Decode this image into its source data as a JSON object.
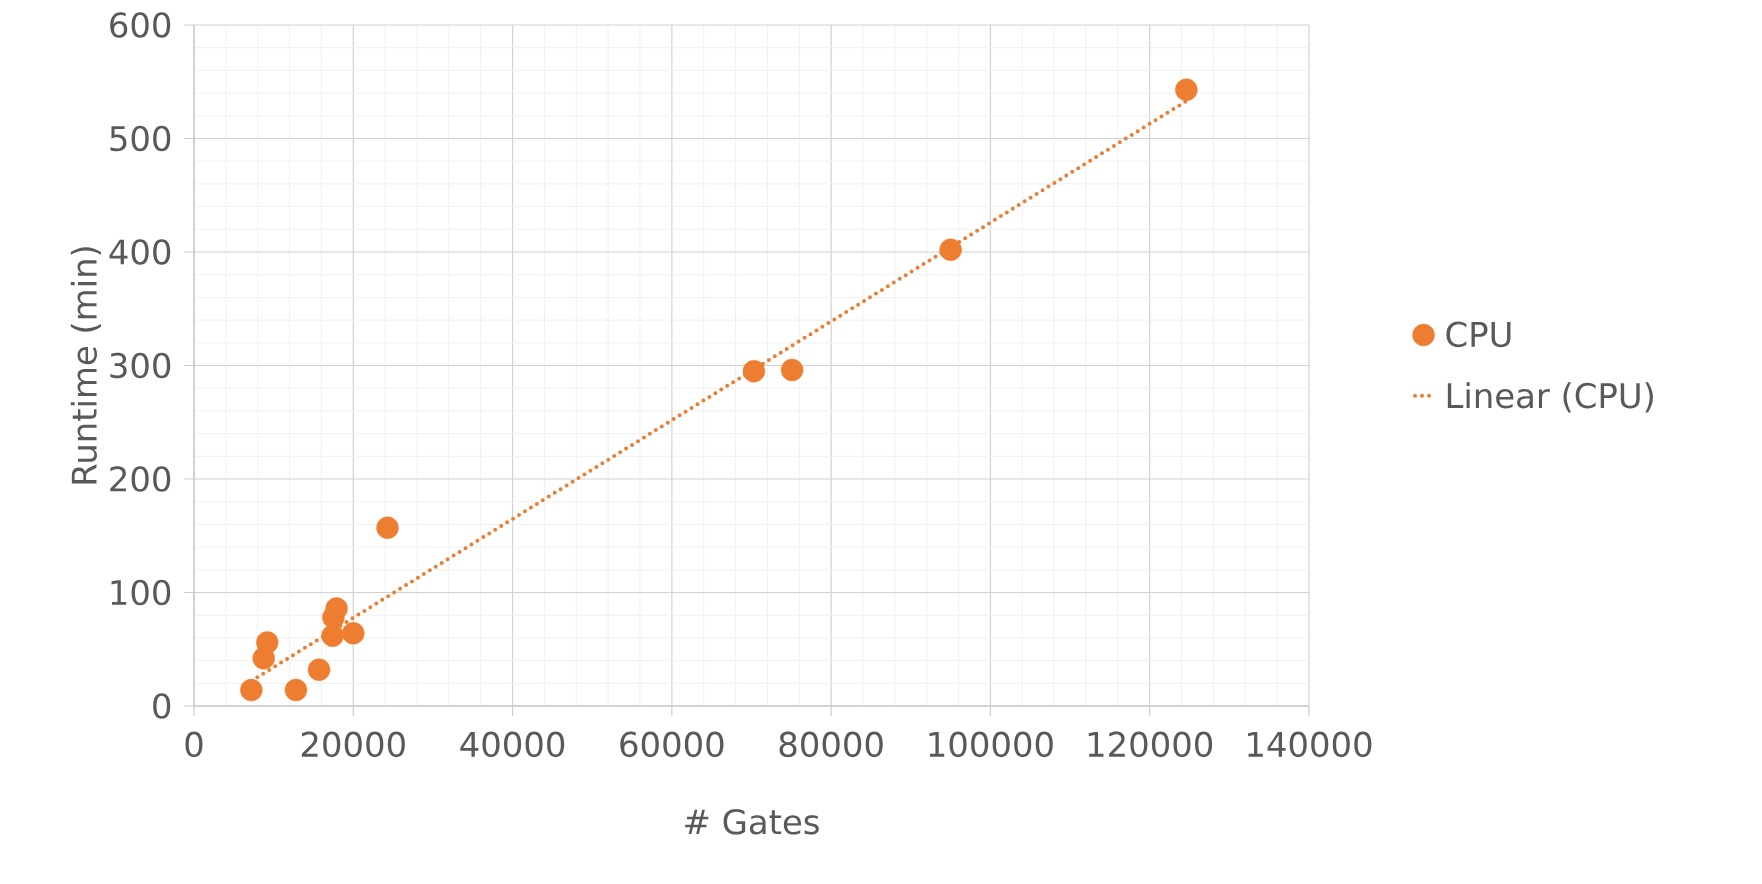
{
  "chart_data": {
    "type": "scatter",
    "xlabel": "# Gates",
    "ylabel": "Runtime (min)",
    "xlim": [
      0,
      140000
    ],
    "ylim": [
      0,
      600
    ],
    "xticks": [
      0,
      20000,
      40000,
      60000,
      80000,
      100000,
      120000,
      140000
    ],
    "yticks": [
      0,
      100,
      200,
      300,
      400,
      500,
      600
    ],
    "grid": true,
    "legend": "right",
    "marker": "circle",
    "series": [
      {
        "name": "CPU",
        "color": "#ed7d31",
        "x": [
          7200,
          12800,
          8750,
          9200,
          15700,
          17400,
          17500,
          17900,
          20000,
          24300,
          70300,
          75100,
          95000,
          124600
        ],
        "values": [
          14,
          14,
          42,
          56,
          32,
          62,
          78,
          86,
          64,
          157,
          295,
          296,
          402,
          543
        ]
      },
      {
        "name": "Linear (CPU)",
        "type": "line",
        "line_style": "dotted",
        "marker": "none",
        "color": "#ed7d31",
        "x": [
          7200,
          124600
        ],
        "values": [
          22,
          533
        ]
      }
    ]
  }
}
